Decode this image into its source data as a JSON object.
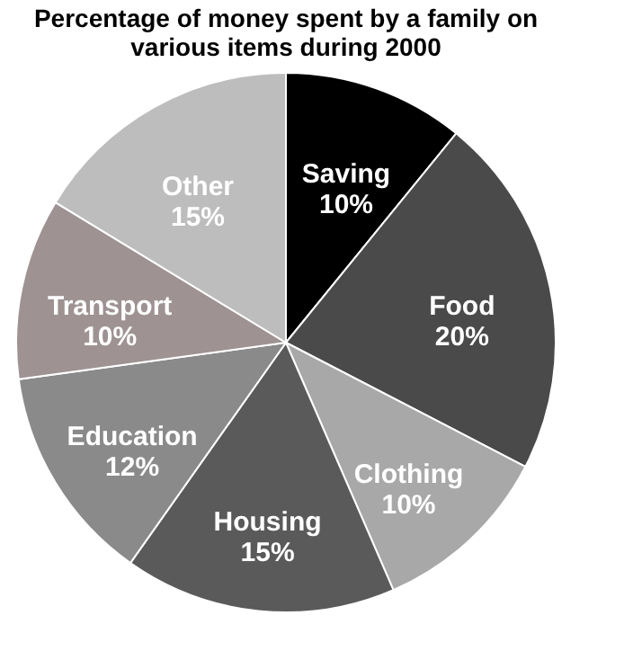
{
  "chart_data": {
    "type": "pie",
    "title": "Percentage of money spent by a family on various items during 2000",
    "categories": [
      "Saving",
      "Food",
      "Clothing",
      "Housing",
      "Education",
      "Transport",
      "Other"
    ],
    "values": [
      10,
      20,
      10,
      15,
      12,
      10,
      15
    ],
    "value_labels": [
      "10%",
      "20%",
      "10%",
      "15%",
      "12%",
      "10%",
      "15%"
    ],
    "colors": [
      "#000000",
      "#4a4a4a",
      "#a8a8a8",
      "#5a5a5a",
      "#8a8a8a",
      "#9e9292",
      "#bdbdbd"
    ],
    "legend": false
  }
}
